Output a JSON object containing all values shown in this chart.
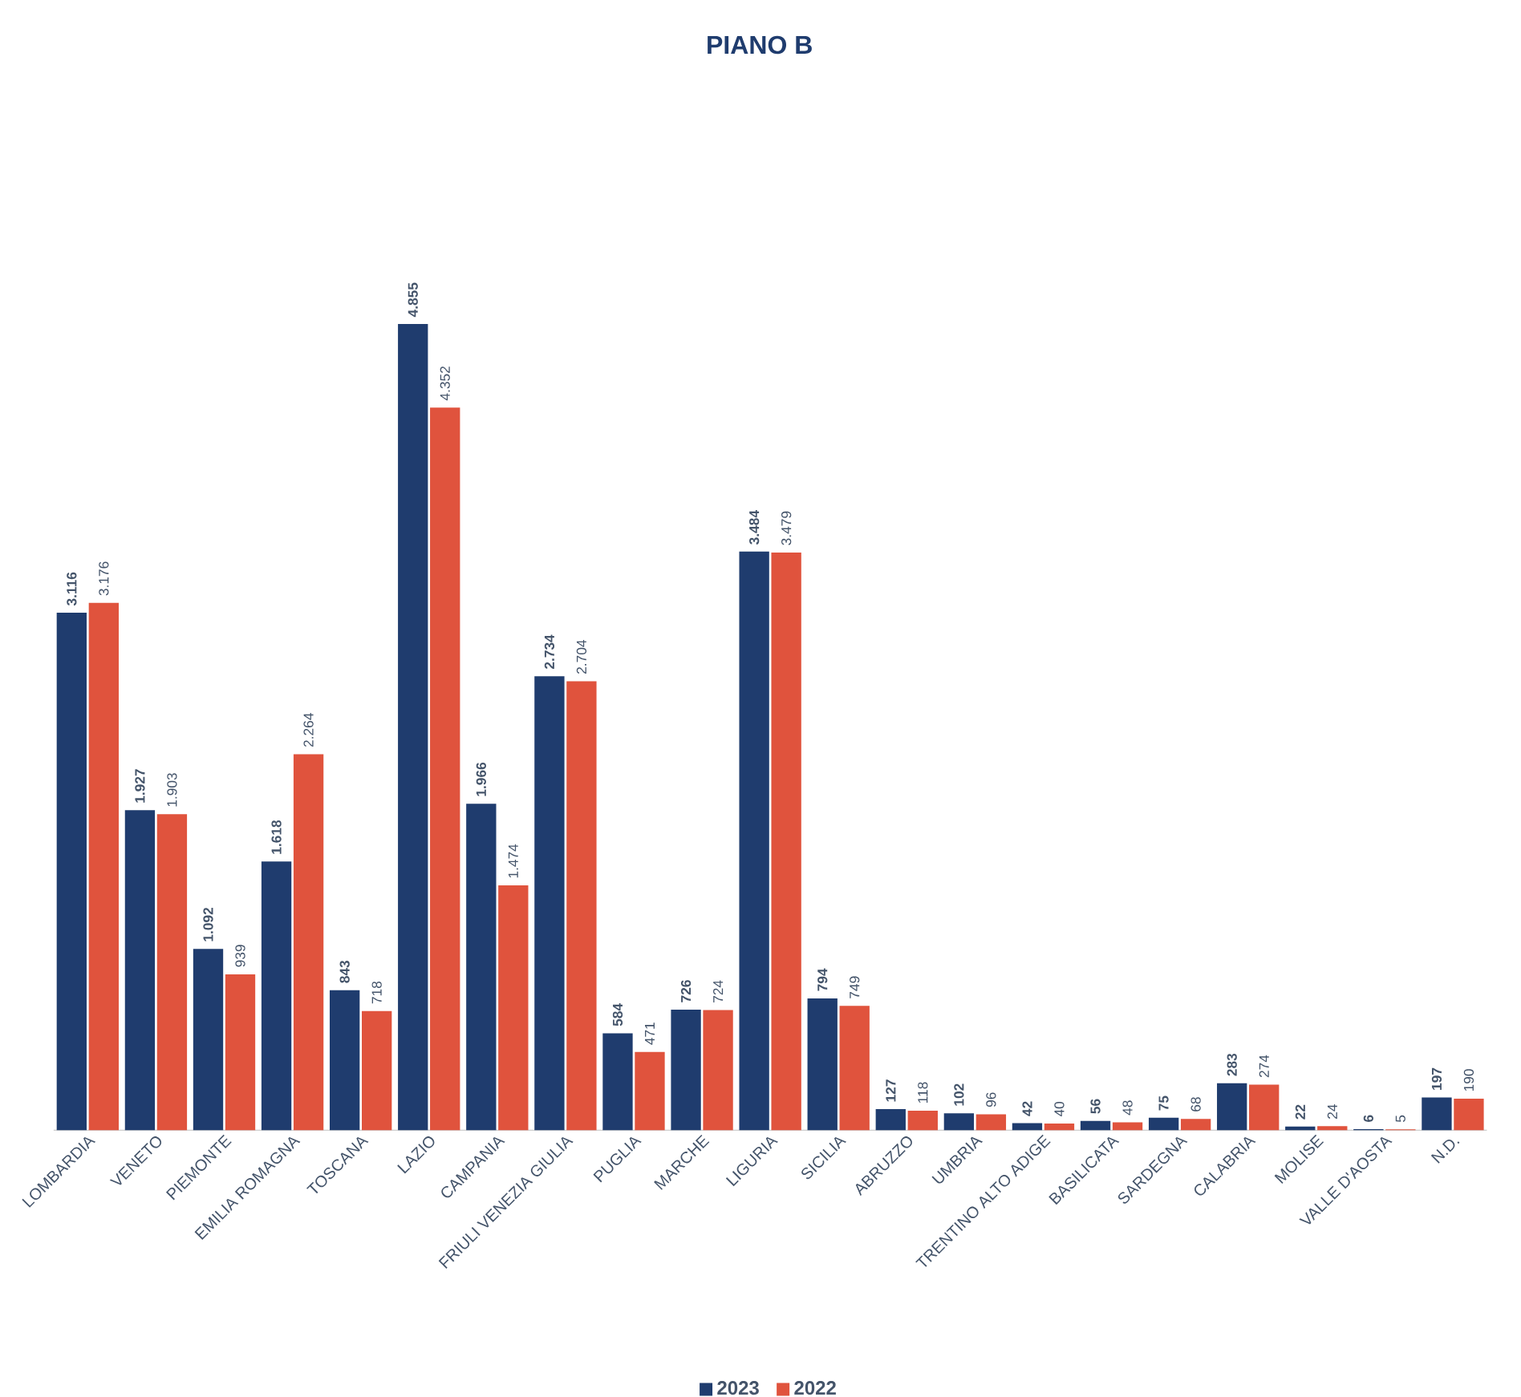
{
  "chart_data": {
    "type": "bar",
    "title": "PIANO B",
    "categories": [
      "LOMBARDIA",
      "VENETO",
      "PIEMONTE",
      "EMILIA ROMAGNA",
      "TOSCANA",
      "LAZIO",
      "CAMPANIA",
      "FRIULI VENEZIA GIULIA",
      "PUGLIA",
      "MARCHE",
      "LIGURIA",
      "SICILIA",
      "ABRUZZO",
      "UMBRIA",
      "TRENTINO ALTO ADIGE",
      "BASILICATA",
      "SARDEGNA",
      "CALABRIA",
      "MOLISE",
      "VALLE D'AOSTA",
      "N.D."
    ],
    "series": [
      {
        "name": "2023",
        "color": "#1f3c6e",
        "values": [
          3116,
          1927,
          1092,
          1618,
          843,
          4855,
          1966,
          2734,
          584,
          726,
          3484,
          794,
          127,
          102,
          42,
          56,
          75,
          283,
          22,
          6,
          197
        ],
        "value_labels": [
          "3.116",
          "1.927",
          "1.092",
          "1.618",
          "843",
          "4.855",
          "1.966",
          "2.734",
          "584",
          "726",
          "3.484",
          "794",
          "127",
          "102",
          "42",
          "56",
          "75",
          "283",
          "22",
          "6",
          "197"
        ]
      },
      {
        "name": "2022",
        "color": "#e0533d",
        "values": [
          3176,
          1903,
          939,
          2264,
          718,
          4352,
          1474,
          2704,
          471,
          724,
          3479,
          749,
          118,
          96,
          40,
          48,
          68,
          274,
          24,
          5,
          190
        ],
        "value_labels": [
          "3.176",
          "1.903",
          "939",
          "2.264",
          "718",
          "4.352",
          "1.474",
          "2.704",
          "471",
          "724",
          "3.479",
          "749",
          "118",
          "96",
          "40",
          "48",
          "68",
          "274",
          "24",
          "5",
          "190"
        ]
      }
    ],
    "legend": "bottom"
  }
}
